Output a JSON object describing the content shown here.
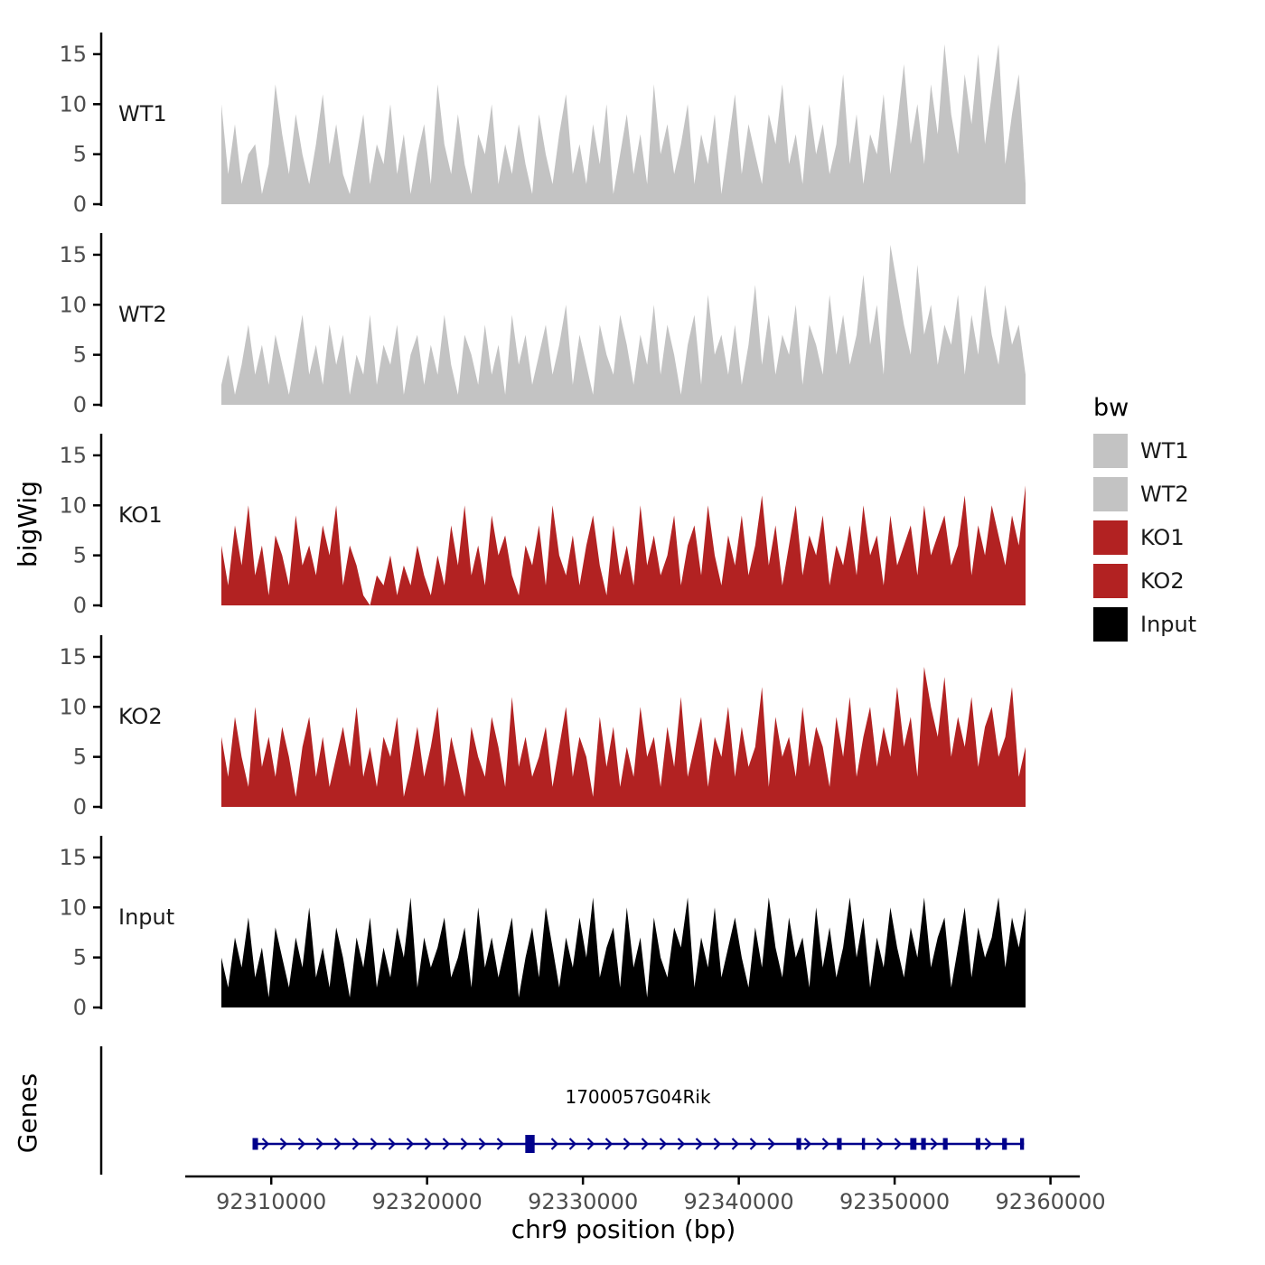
{
  "y_axis": {
    "label": "bigWig",
    "ticks": [
      0,
      5,
      10,
      15
    ]
  },
  "x_axis": {
    "label": "chr9 position (bp)",
    "ticks": [
      92310000,
      92320000,
      92330000,
      92340000,
      92350000,
      92360000
    ]
  },
  "legend": {
    "title": "bw",
    "entries": [
      {
        "label": "WT1",
        "color": "#c3c3c3"
      },
      {
        "label": "WT2",
        "color": "#c3c3c3"
      },
      {
        "label": "KO1",
        "color": "#b22222"
      },
      {
        "label": "KO2",
        "color": "#b22222"
      },
      {
        "label": "Input",
        "color": "#000000"
      }
    ]
  },
  "colors": {
    "wt": "#c3c3c3",
    "ko": "#b22222",
    "input": "#000000",
    "gene": "#00008b",
    "axis": "#000000",
    "tick_text": "#4d4d4d"
  },
  "genes_panel": {
    "label": "Genes",
    "gene": {
      "name": "1700057G04Rik",
      "strand": "+",
      "start": 92308800,
      "end": 92358300,
      "exons": [
        [
          92308800,
          92309150
        ],
        [
          92326300,
          92326900
        ],
        [
          92343700,
          92344000
        ],
        [
          92346300,
          92346600
        ],
        [
          92347900,
          92348100
        ],
        [
          92351000,
          92351400
        ],
        [
          92351700,
          92352000
        ],
        [
          92353100,
          92353400
        ],
        [
          92355200,
          92355500
        ],
        [
          92356900,
          92357200
        ],
        [
          92358050,
          92358300
        ]
      ]
    }
  },
  "chart_data": {
    "type": "area",
    "title": "",
    "xlabel": "chr9 position (bp)",
    "ylabel": "bigWig",
    "x_domain": [
      92306800,
      92358400
    ],
    "x_ticks": [
      92310000,
      92320000,
      92330000,
      92340000,
      92350000,
      92360000
    ],
    "y_ticks": [
      0,
      5,
      10,
      15
    ],
    "ylim": [
      0,
      17
    ],
    "legend_position": "right",
    "grid": false,
    "tracks": [
      {
        "name": "WT1",
        "color": "#c3c3c3",
        "values": [
          10,
          3,
          8,
          2,
          5,
          6,
          1,
          4,
          12,
          7,
          3,
          9,
          5,
          2,
          6,
          11,
          4,
          8,
          3,
          1,
          5,
          9,
          2,
          6,
          4,
          10,
          3,
          7,
          1,
          5,
          8,
          2,
          12,
          6,
          3,
          9,
          4,
          1,
          7,
          5,
          10,
          2,
          6,
          3,
          8,
          4,
          1,
          9,
          5,
          2,
          7,
          11,
          3,
          6,
          2,
          8,
          4,
          10,
          1,
          5,
          9,
          3,
          7,
          2,
          12,
          5,
          8,
          3,
          6,
          10,
          2,
          7,
          4,
          9,
          1,
          6,
          11,
          3,
          8,
          5,
          2,
          9,
          6,
          12,
          4,
          7,
          2,
          10,
          5,
          8,
          3,
          6,
          13,
          4,
          9,
          2,
          7,
          5,
          11,
          3,
          8,
          14,
          6,
          10,
          4,
          12,
          7,
          16,
          9,
          5,
          13,
          8,
          15,
          6,
          11,
          16,
          4,
          9,
          13,
          2
        ]
      },
      {
        "name": "WT2",
        "color": "#c3c3c3",
        "values": [
          2,
          5,
          1,
          4,
          8,
          3,
          6,
          2,
          7,
          4,
          1,
          5,
          9,
          3,
          6,
          2,
          8,
          4,
          7,
          1,
          5,
          3,
          9,
          2,
          6,
          4,
          8,
          1,
          5,
          7,
          2,
          6,
          3,
          9,
          4,
          1,
          7,
          5,
          2,
          8,
          3,
          6,
          1,
          9,
          4,
          7,
          2,
          5,
          8,
          3,
          6,
          10,
          2,
          7,
          4,
          1,
          8,
          5,
          3,
          9,
          6,
          2,
          7,
          4,
          10,
          3,
          8,
          5,
          1,
          6,
          9,
          2,
          11,
          5,
          7,
          3,
          8,
          2,
          6,
          12,
          4,
          9,
          3,
          7,
          5,
          10,
          2,
          8,
          6,
          3,
          11,
          5,
          9,
          4,
          7,
          13,
          6,
          10,
          3,
          16,
          12,
          8,
          5,
          14,
          7,
          10,
          4,
          8,
          6,
          11,
          3,
          9,
          5,
          12,
          7,
          4,
          10,
          6,
          8,
          3
        ]
      },
      {
        "name": "KO1",
        "color": "#b22222",
        "values": [
          6,
          2,
          8,
          4,
          10,
          3,
          6,
          1,
          7,
          5,
          2,
          9,
          4,
          6,
          3,
          8,
          5,
          10,
          2,
          6,
          4,
          1,
          0,
          3,
          2,
          5,
          1,
          4,
          2,
          6,
          3,
          1,
          5,
          2,
          8,
          4,
          10,
          3,
          6,
          2,
          9,
          5,
          7,
          3,
          1,
          6,
          4,
          8,
          2,
          10,
          5,
          3,
          7,
          2,
          6,
          9,
          4,
          1,
          8,
          3,
          6,
          2,
          10,
          4,
          7,
          3,
          5,
          9,
          2,
          6,
          8,
          3,
          10,
          5,
          2,
          7,
          4,
          9,
          3,
          6,
          11,
          4,
          8,
          2,
          6,
          10,
          3,
          7,
          5,
          9,
          2,
          6,
          4,
          8,
          3,
          10,
          5,
          7,
          2,
          9,
          4,
          6,
          8,
          3,
          10,
          5,
          7,
          9,
          4,
          6,
          11,
          3,
          8,
          5,
          10,
          7,
          4,
          9,
          6,
          12
        ]
      },
      {
        "name": "KO2",
        "color": "#b22222",
        "values": [
          7,
          3,
          9,
          5,
          2,
          10,
          4,
          7,
          3,
          8,
          5,
          1,
          6,
          9,
          3,
          7,
          2,
          5,
          8,
          4,
          10,
          3,
          6,
          2,
          7,
          5,
          9,
          1,
          4,
          8,
          3,
          6,
          10,
          2,
          7,
          4,
          1,
          8,
          5,
          3,
          9,
          6,
          2,
          11,
          4,
          7,
          3,
          5,
          8,
          2,
          6,
          10,
          3,
          7,
          5,
          1,
          9,
          4,
          8,
          2,
          6,
          3,
          10,
          5,
          7,
          2,
          8,
          4,
          11,
          3,
          6,
          9,
          2,
          7,
          5,
          10,
          3,
          8,
          4,
          6,
          12,
          2,
          9,
          5,
          7,
          3,
          10,
          4,
          8,
          6,
          2,
          9,
          5,
          11,
          3,
          7,
          10,
          4,
          8,
          5,
          12,
          6,
          9,
          3,
          14,
          10,
          7,
          13,
          5,
          9,
          6,
          11,
          4,
          8,
          10,
          5,
          7,
          12,
          3,
          6
        ]
      },
      {
        "name": "Input",
        "color": "#000000",
        "values": [
          5,
          2,
          7,
          4,
          9,
          3,
          6,
          1,
          8,
          5,
          2,
          7,
          4,
          10,
          3,
          6,
          2,
          8,
          5,
          1,
          7,
          4,
          9,
          2,
          6,
          3,
          8,
          5,
          11,
          2,
          7,
          4,
          6,
          9,
          3,
          5,
          8,
          2,
          10,
          4,
          7,
          3,
          6,
          9,
          1,
          5,
          8,
          3,
          10,
          6,
          2,
          7,
          4,
          9,
          5,
          11,
          3,
          6,
          8,
          2,
          10,
          4,
          7,
          1,
          9,
          5,
          3,
          8,
          6,
          11,
          2,
          7,
          4,
          10,
          3,
          6,
          9,
          5,
          2,
          8,
          4,
          11,
          6,
          3,
          9,
          5,
          7,
          2,
          10,
          4,
          8,
          3,
          6,
          11,
          5,
          9,
          2,
          7,
          4,
          10,
          6,
          3,
          8,
          5,
          11,
          4,
          7,
          9,
          2,
          6,
          10,
          3,
          8,
          5,
          7,
          11,
          4,
          9,
          6,
          10
        ]
      }
    ]
  }
}
